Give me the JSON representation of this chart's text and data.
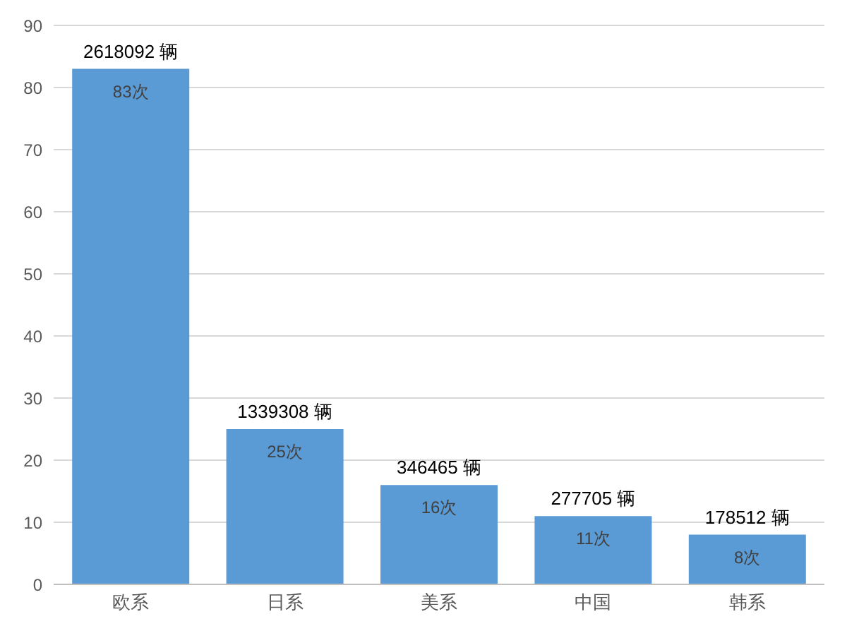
{
  "chart_data": {
    "type": "bar",
    "categories": [
      "欧系",
      "日系",
      "美系",
      "中国",
      "韩系"
    ],
    "values": [
      83,
      25,
      16,
      11,
      8
    ],
    "value_labels": [
      "83次",
      "25次",
      "16次",
      "11次",
      "8次"
    ],
    "color": "#5b9bd5",
    "ylim": [
      0,
      90
    ],
    "yticks": [
      0,
      10,
      20,
      30,
      40,
      50,
      60,
      70,
      80,
      90
    ],
    "grid": "y",
    "annotations": [
      {
        "text": "2618092 辆",
        "x": "欧系",
        "y": 83
      },
      {
        "text": "1339308 辆",
        "x": "日系",
        "y": 25
      },
      {
        "text": "346465 辆",
        "x": "美系",
        "y": 16
      },
      {
        "text": "277705 辆",
        "x": "中国",
        "y": 11
      },
      {
        "text": "178512 辆",
        "x": "韩系",
        "y": 8
      }
    ]
  }
}
